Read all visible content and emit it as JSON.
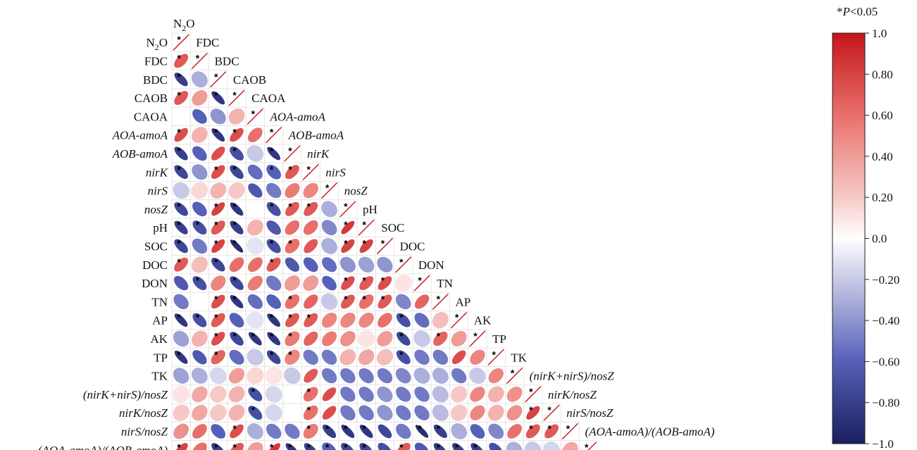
{
  "chart_data": {
    "type": "heatmap",
    "subtype": "correlation-ellipse-lower-triangle",
    "title": "",
    "significance_note": "*P<0.05",
    "variables": [
      "N2O",
      "FDC",
      "BDC",
      "CAOB",
      "CAOA",
      "AOA-amoA",
      "AOB-amoA",
      "nirK",
      "nirS",
      "nosZ",
      "pH",
      "SOC",
      "DOC",
      "DON",
      "TN",
      "AP",
      "AK",
      "TP",
      "TK",
      "(nirK+nirS)/nosZ",
      "nirK/nosZ",
      "nirS/nosZ",
      "(AOA-amoA)/(AOB-amoA)"
    ],
    "variable_labels": [
      {
        "text": "N",
        "sub": "2",
        "tail": "O",
        "italic": false
      },
      {
        "text": "FDC",
        "italic": false
      },
      {
        "text": "BDC",
        "italic": false
      },
      {
        "text": "CAOB",
        "italic": false
      },
      {
        "text": "CAOA",
        "italic": false
      },
      {
        "text": "AOA-amoA",
        "italic": true
      },
      {
        "text": "AOB-amoA",
        "italic": true
      },
      {
        "text": "nirK",
        "italic": true
      },
      {
        "text": "nirS",
        "italic": true
      },
      {
        "text": "nosZ",
        "italic": true
      },
      {
        "text": "pH",
        "italic": false
      },
      {
        "text": "SOC",
        "italic": false
      },
      {
        "text": "DOC",
        "italic": false
      },
      {
        "text": "DON",
        "italic": false
      },
      {
        "text": "TN",
        "italic": false
      },
      {
        "text": "AP",
        "italic": false
      },
      {
        "text": "AK",
        "italic": false
      },
      {
        "text": "TP",
        "italic": false
      },
      {
        "text": "TK",
        "italic": false
      },
      {
        "text": "(nirK+nirS)/nosZ",
        "italic": true
      },
      {
        "text": "nirK/nosZ",
        "italic": true
      },
      {
        "text": "nirS/nosZ",
        "italic": true
      },
      {
        "text": "(AOA-amoA)/(AOB-amoA)",
        "italic": true
      }
    ],
    "matrix_lower": [
      [
        1.0
      ],
      [
        0.7,
        1.0
      ],
      [
        -0.8,
        -0.3,
        1.0
      ],
      [
        0.7,
        0.4,
        -0.85,
        1.0
      ],
      [
        0.0,
        -0.6,
        -0.4,
        0.3,
        1.0
      ],
      [
        0.75,
        0.3,
        -0.85,
        0.75,
        0.6,
        1.0
      ],
      [
        -0.8,
        -0.6,
        0.75,
        -0.7,
        -0.2,
        -0.85,
        1.0
      ],
      [
        -0.75,
        -0.4,
        0.75,
        -0.75,
        -0.55,
        -0.6,
        0.7,
        1.0
      ],
      [
        -0.2,
        0.15,
        0.3,
        0.2,
        -0.65,
        -0.5,
        0.55,
        0.5,
        1.0
      ],
      [
        -0.75,
        -0.6,
        0.8,
        -0.85,
        0.0,
        -0.7,
        0.7,
        0.7,
        -0.3,
        1.0
      ],
      [
        -0.8,
        -0.7,
        0.7,
        -0.8,
        0.3,
        -0.65,
        0.6,
        0.6,
        -0.45,
        0.85,
        1.0
      ],
      [
        -0.75,
        -0.5,
        0.8,
        -0.9,
        -0.1,
        -0.7,
        0.6,
        0.7,
        -0.3,
        0.8,
        0.8,
        1.0
      ],
      [
        0.7,
        0.25,
        -0.75,
        0.6,
        0.6,
        0.7,
        -0.65,
        -0.6,
        -0.55,
        -0.4,
        -0.35,
        -0.4,
        1.0
      ],
      [
        -0.65,
        -0.7,
        0.5,
        -0.75,
        0.55,
        -0.5,
        0.4,
        0.4,
        -0.6,
        0.75,
        0.7,
        0.75,
        0.1,
        1.0
      ],
      [
        -0.5,
        0.0,
        0.75,
        -0.85,
        -0.55,
        -0.6,
        0.6,
        0.65,
        -0.2,
        0.7,
        0.6,
        0.7,
        -0.45,
        0.65,
        1.0
      ],
      [
        -0.85,
        -0.7,
        0.7,
        -0.6,
        -0.1,
        -0.85,
        0.7,
        0.7,
        0.5,
        0.5,
        0.5,
        0.6,
        -0.7,
        -0.55,
        0.25,
        1.0
      ],
      [
        -0.35,
        0.3,
        0.75,
        -0.75,
        -0.85,
        -0.85,
        0.55,
        0.65,
        0.55,
        0.45,
        0.1,
        0.4,
        -0.75,
        -0.2,
        0.65,
        0.4,
        1.0
      ],
      [
        -0.85,
        -0.65,
        0.65,
        -0.55,
        -0.2,
        -0.75,
        0.5,
        -0.5,
        -0.5,
        0.3,
        0.35,
        0.25,
        -0.7,
        -0.5,
        -0.5,
        0.75,
        0.5,
        1.0
      ],
      [
        -0.35,
        -0.3,
        -0.15,
        0.4,
        0.15,
        0.1,
        -0.2,
        0.7,
        -0.5,
        -0.5,
        -0.5,
        -0.5,
        -0.45,
        -0.3,
        -0.3,
        -0.5,
        -0.2,
        0.5,
        1.0
      ],
      [
        0.1,
        0.35,
        0.2,
        0.3,
        -0.7,
        -0.15,
        0.0,
        0.6,
        0.75,
        -0.5,
        -0.5,
        -0.4,
        -0.5,
        -0.5,
        -0.25,
        0.2,
        0.5,
        0.3,
        0.45,
        1.0
      ],
      [
        0.2,
        0.35,
        0.2,
        0.3,
        -0.7,
        -0.15,
        0.0,
        0.6,
        0.75,
        -0.5,
        -0.5,
        -0.4,
        -0.5,
        -0.5,
        -0.25,
        0.2,
        0.5,
        0.3,
        0.45,
        0.8,
        1.0
      ],
      [
        0.45,
        0.6,
        -0.6,
        0.75,
        -0.3,
        -0.5,
        -0.5,
        0.55,
        -0.8,
        -0.85,
        -0.85,
        -0.75,
        -0.5,
        -0.9,
        -0.8,
        -0.3,
        -0.6,
        -0.45,
        0.6,
        0.7,
        0.7,
        1.0
      ],
      [
        0.8,
        0.6,
        -0.8,
        0.7,
        0.4,
        0.85,
        -0.85,
        -0.8,
        -0.6,
        -0.75,
        -0.75,
        -0.7,
        0.7,
        -0.65,
        -0.8,
        -0.8,
        -0.8,
        -0.7,
        -0.3,
        -0.2,
        -0.15,
        0.35,
        1.0
      ]
    ],
    "significant_lower": [
      [
        1
      ],
      [
        1,
        1
      ],
      [
        1,
        0,
        1
      ],
      [
        1,
        0,
        1,
        1
      ],
      [
        0,
        0,
        0,
        0,
        1
      ],
      [
        1,
        0,
        1,
        1,
        0,
        1
      ],
      [
        1,
        0,
        0,
        1,
        0,
        1,
        1
      ],
      [
        1,
        0,
        1,
        1,
        0,
        1,
        1,
        1
      ],
      [
        0,
        0,
        0,
        0,
        0,
        0,
        0,
        0,
        1
      ],
      [
        1,
        0,
        1,
        1,
        0,
        1,
        1,
        1,
        0,
        1
      ],
      [
        1,
        1,
        1,
        1,
        0,
        0,
        0,
        0,
        0,
        1,
        1
      ],
      [
        1,
        0,
        1,
        1,
        0,
        1,
        1,
        0,
        0,
        1,
        1,
        1
      ],
      [
        1,
        0,
        1,
        0,
        0,
        1,
        0,
        0,
        0,
        0,
        0,
        0,
        1
      ],
      [
        0,
        1,
        0,
        1,
        0,
        0,
        0,
        0,
        0,
        1,
        1,
        1,
        0,
        1
      ],
      [
        0,
        0,
        1,
        1,
        0,
        0,
        1,
        0,
        0,
        1,
        1,
        1,
        0,
        0,
        1
      ],
      [
        1,
        1,
        1,
        0,
        0,
        1,
        1,
        1,
        0,
        0,
        0,
        0,
        1,
        0,
        0,
        1
      ],
      [
        0,
        0,
        1,
        1,
        1,
        1,
        1,
        0,
        0,
        0,
        0,
        0,
        1,
        0,
        1,
        0,
        1
      ],
      [
        1,
        0,
        1,
        0,
        0,
        1,
        1,
        0,
        0,
        0,
        0,
        0,
        1,
        0,
        0,
        0,
        0,
        1
      ],
      [
        0,
        0,
        0,
        0,
        0,
        0,
        0,
        0,
        0,
        0,
        0,
        0,
        0,
        0,
        0,
        0,
        0,
        0,
        1
      ],
      [
        0,
        0,
        0,
        0,
        1,
        0,
        0,
        1,
        0,
        0,
        0,
        0,
        0,
        0,
        0,
        0,
        0,
        0,
        0,
        1
      ],
      [
        0,
        0,
        0,
        0,
        1,
        0,
        0,
        1,
        0,
        0,
        0,
        0,
        0,
        0,
        0,
        0,
        0,
        0,
        0,
        1,
        1
      ],
      [
        0,
        0,
        0,
        1,
        0,
        0,
        0,
        1,
        1,
        1,
        1,
        0,
        0,
        1,
        1,
        0,
        0,
        0,
        0,
        1,
        1,
        1
      ],
      [
        1,
        0,
        1,
        1,
        0,
        1,
        1,
        1,
        1,
        1,
        1,
        0,
        1,
        0,
        1,
        1,
        1,
        0,
        0,
        0,
        0,
        0,
        1
      ]
    ],
    "colorbar": {
      "range": [
        -1.0,
        1.0
      ],
      "ticks": [
        "1.0",
        "0.80",
        "0.60",
        "0.40",
        "0.20",
        "0.0",
        "−0.20",
        "−0.40",
        "−0.60",
        "−0.80",
        "−1.0"
      ],
      "colors": {
        "negative": "#1a1f5e",
        "mid_negative": "#5560b8",
        "zero": "#ffffff",
        "mid_positive": "#e8706a",
        "positive": "#c4151c"
      }
    }
  }
}
